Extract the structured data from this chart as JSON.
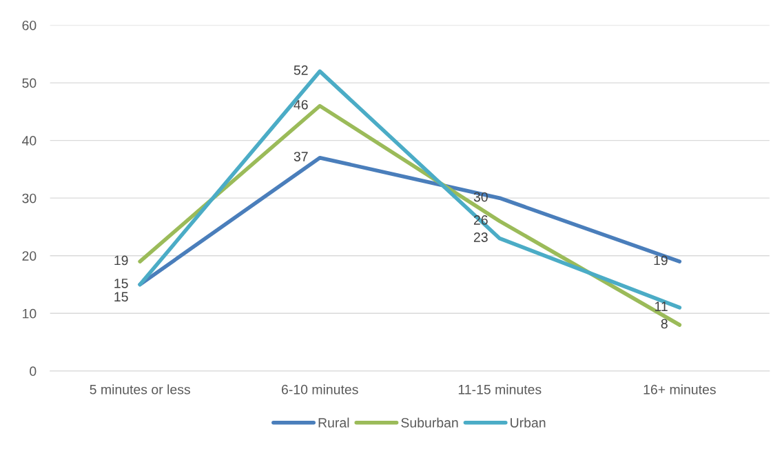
{
  "chart_data": {
    "type": "line",
    "categories": [
      "5 minutes or less",
      "6-10 minutes",
      "11-15 minutes",
      "16+ minutes"
    ],
    "series": [
      {
        "name": "Rural",
        "color": "#4a7ebb",
        "values": [
          15,
          37,
          30,
          19
        ]
      },
      {
        "name": "Suburban",
        "color": "#9bbb59",
        "values": [
          19,
          46,
          26,
          8
        ]
      },
      {
        "name": "Urban",
        "color": "#4bacc6",
        "values": [
          15,
          52,
          23,
          11
        ]
      }
    ],
    "ylim": [
      0,
      60
    ],
    "yticks": [
      0,
      10,
      20,
      30,
      40,
      50,
      60
    ],
    "grid": "y",
    "legend": "bottom",
    "data_labels": true,
    "marker": "none",
    "line_style": "solid"
  }
}
